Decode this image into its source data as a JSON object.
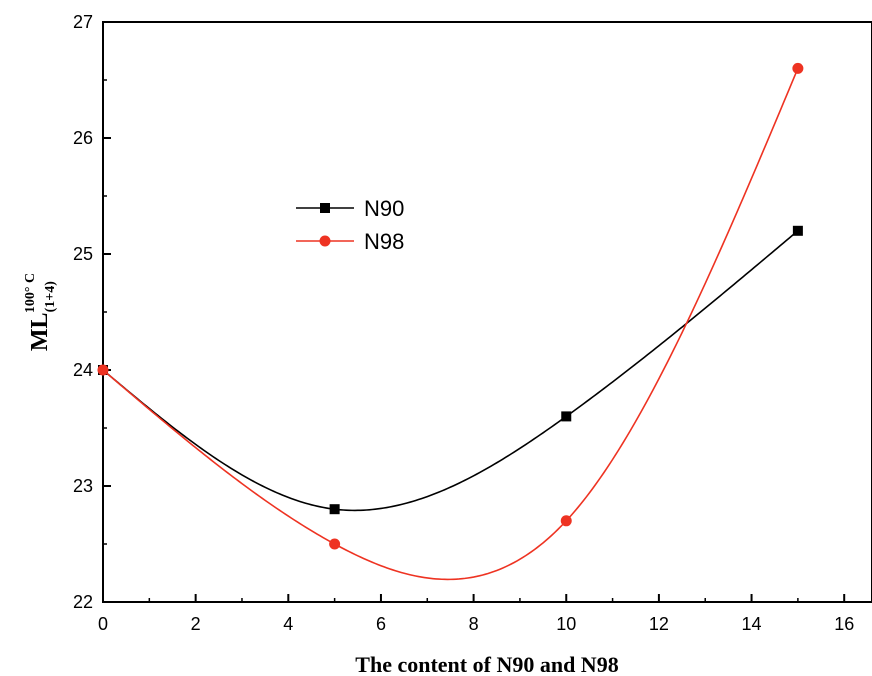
{
  "chart_data": {
    "type": "line",
    "xlabel": "The content of N90 and N98",
    "ylabel": {
      "main": "ML",
      "subscript": "(1+4)",
      "superscript": "100° C"
    },
    "xlim": [
      0,
      16.6
    ],
    "ylim": [
      22,
      27
    ],
    "xticks": [
      0,
      2,
      4,
      6,
      8,
      10,
      12,
      14,
      16
    ],
    "yticks": [
      22,
      23,
      24,
      25,
      26,
      27
    ],
    "grid": false,
    "legend_position": "upper-left",
    "series": [
      {
        "name": "N90",
        "color": "#000000",
        "marker": "square",
        "x": [
          0,
          5,
          10,
          15
        ],
        "y": [
          24.0,
          22.8,
          23.6,
          25.2
        ]
      },
      {
        "name": "N98",
        "color": "#ee3322",
        "marker": "circle",
        "x": [
          0,
          5,
          10,
          15
        ],
        "y": [
          24.0,
          22.5,
          22.7,
          26.6
        ]
      }
    ]
  }
}
